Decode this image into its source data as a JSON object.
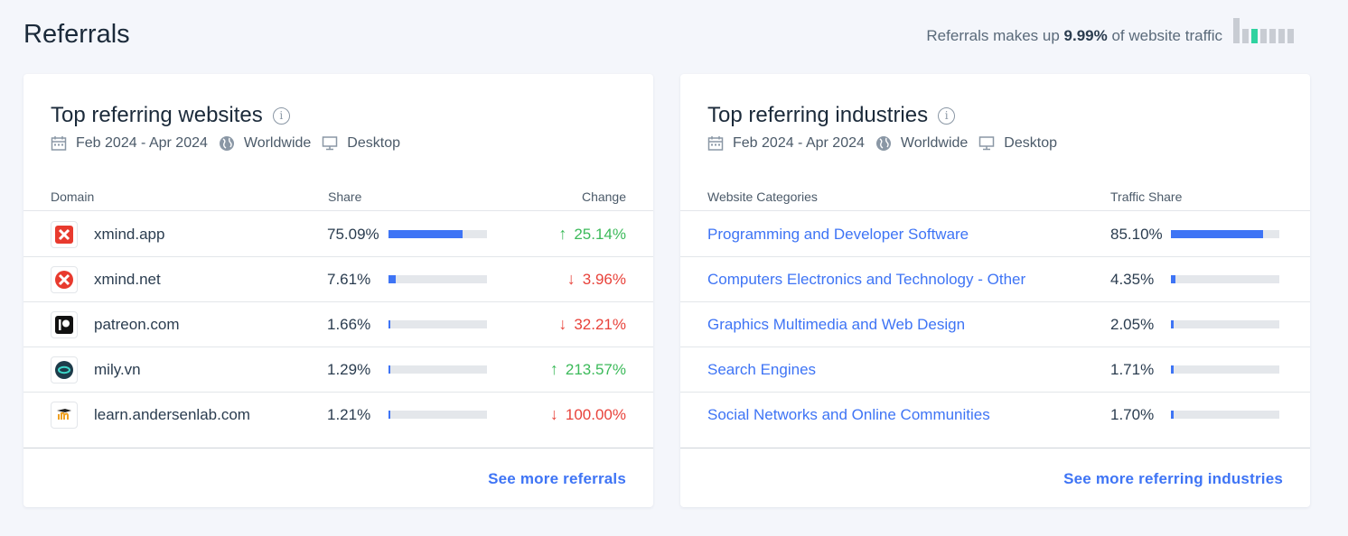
{
  "page": {
    "title": "Referrals"
  },
  "summary": {
    "prefix": "Referrals makes up",
    "value": "9.99%",
    "suffix": "of website traffic"
  },
  "filters": {
    "date_range": "Feb 2024 - Apr 2024",
    "region": "Worldwide",
    "device": "Desktop"
  },
  "websites": {
    "title": "Top referring websites",
    "columns": {
      "domain": "Domain",
      "share": "Share",
      "change": "Change"
    },
    "rows": [
      {
        "domain": "xmind.app",
        "share": "75.09%",
        "share_value": 75.09,
        "change": "25.14%",
        "direction": "up"
      },
      {
        "domain": "xmind.net",
        "share": "7.61%",
        "share_value": 7.61,
        "change": "3.96%",
        "direction": "down"
      },
      {
        "domain": "patreon.com",
        "share": "1.66%",
        "share_value": 1.66,
        "change": "32.21%",
        "direction": "down"
      },
      {
        "domain": "mily.vn",
        "share": "1.29%",
        "share_value": 1.29,
        "change": "213.57%",
        "direction": "up"
      },
      {
        "domain": "learn.andersenlab.com",
        "share": "1.21%",
        "share_value": 1.21,
        "change": "100.00%",
        "direction": "down"
      }
    ],
    "more_label": "See more referrals"
  },
  "industries": {
    "title": "Top referring industries",
    "columns": {
      "category": "Website Categories",
      "share": "Traffic Share"
    },
    "rows": [
      {
        "category": "Programming and Developer Software",
        "share": "85.10%",
        "share_value": 85.1
      },
      {
        "category": "Computers Electronics and Technology - Other",
        "share": "4.35%",
        "share_value": 4.35
      },
      {
        "category": "Graphics Multimedia and Web Design",
        "share": "2.05%",
        "share_value": 2.05
      },
      {
        "category": "Search Engines",
        "share": "1.71%",
        "share_value": 1.71
      },
      {
        "category": "Social Networks and Online Communities",
        "share": "1.70%",
        "share_value": 1.7
      }
    ],
    "more_label": "See more referring industries"
  },
  "colors": {
    "accent": "#3e74f5",
    "up": "#3cba5a",
    "down": "#e8423a",
    "mini_active": "#2fd2a0"
  },
  "icons": [
    "info-icon",
    "calendar-icon",
    "globe-icon",
    "desktop-icon",
    "arrow-up-icon",
    "arrow-down-icon"
  ]
}
